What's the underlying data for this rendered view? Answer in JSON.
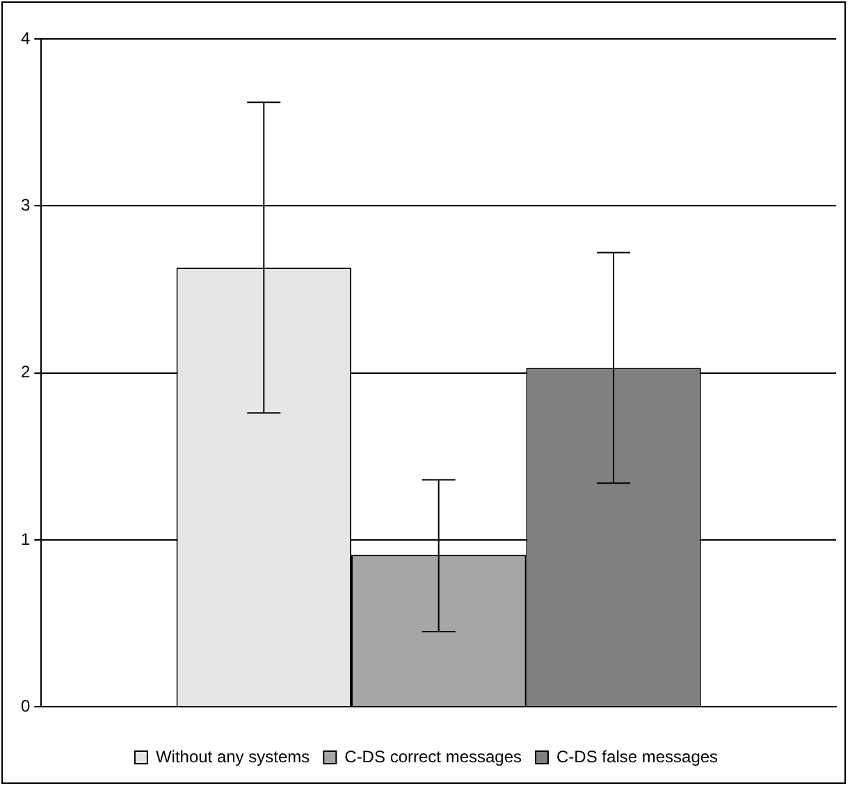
{
  "chart_data": {
    "type": "bar",
    "categories": [
      null
    ],
    "series": [
      {
        "name": "Without any systems",
        "color": "#e6e6e6",
        "values": [
          2.63
        ],
        "errors": [
          [
            1.76,
            3.62
          ]
        ]
      },
      {
        "name": "C-DS correct messages",
        "color": "#a6a6a6",
        "values": [
          0.91
        ],
        "errors": [
          [
            0.45,
            1.36
          ]
        ]
      },
      {
        "name": "C-DS false messages",
        "color": "#808080",
        "values": [
          2.03
        ],
        "errors": [
          [
            1.34,
            2.72
          ]
        ]
      }
    ],
    "ylim": [
      0,
      4
    ],
    "yticks": [
      0,
      1,
      2,
      3,
      4
    ],
    "grid": "y",
    "legend": "bottom"
  }
}
